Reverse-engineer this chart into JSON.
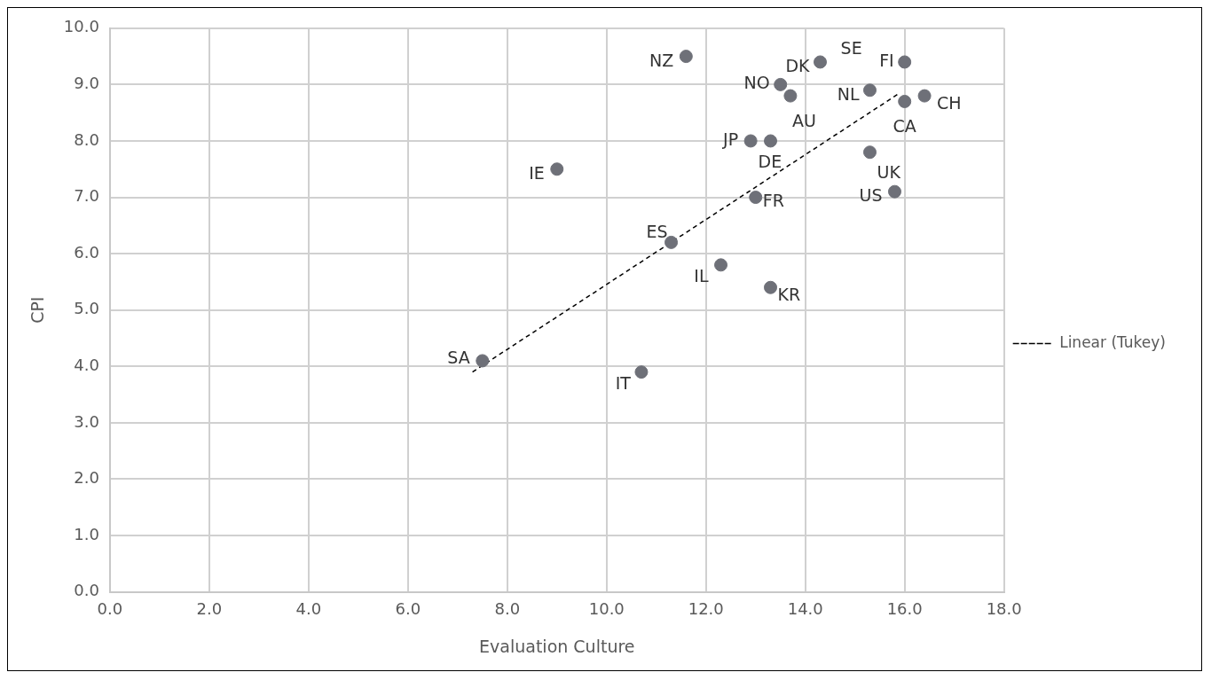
{
  "chart_data": {
    "type": "scatter",
    "xlabel": "Evaluation Culture",
    "ylabel": "CPI",
    "xlim": [
      0,
      18
    ],
    "ylim": [
      0,
      10
    ],
    "xticks": [
      {
        "value": 0,
        "label": "0.0"
      },
      {
        "value": 2,
        "label": "2.0"
      },
      {
        "value": 4,
        "label": "4.0"
      },
      {
        "value": 6,
        "label": "6.0"
      },
      {
        "value": 8,
        "label": "8.0"
      },
      {
        "value": 10,
        "label": "10.0"
      },
      {
        "value": 12,
        "label": "12.0"
      },
      {
        "value": 14,
        "label": "14.0"
      },
      {
        "value": 16,
        "label": "16.0"
      },
      {
        "value": 18,
        "label": "18.0"
      }
    ],
    "yticks": [
      {
        "value": 0,
        "label": "0.0"
      },
      {
        "value": 1,
        "label": "1.0"
      },
      {
        "value": 2,
        "label": "2.0"
      },
      {
        "value": 3,
        "label": "3.0"
      },
      {
        "value": 4,
        "label": "4.0"
      },
      {
        "value": 5,
        "label": "5.0"
      },
      {
        "value": 6,
        "label": "6.0"
      },
      {
        "value": 7,
        "label": "7.0"
      },
      {
        "value": 8,
        "label": "8.0"
      },
      {
        "value": 9,
        "label": "9.0"
      },
      {
        "value": 10,
        "label": "10.0"
      }
    ],
    "grid": true,
    "legend": "right",
    "series": [
      {
        "marker": "circle",
        "color": "#6e7078",
        "x": [
          11.6,
          14.3,
          16.0,
          13.5,
          13.7,
          15.3,
          16.0,
          16.4,
          12.9,
          13.3,
          15.3,
          9.0,
          15.8,
          13.0,
          11.3,
          12.3,
          13.3,
          7.5,
          10.7
        ],
        "values": [
          9.5,
          9.4,
          9.4,
          9.0,
          8.8,
          8.9,
          8.7,
          8.8,
          8.0,
          8.0,
          7.8,
          7.5,
          7.1,
          7.0,
          6.2,
          5.8,
          5.4,
          4.1,
          3.9
        ]
      },
      {
        "type": "line",
        "name": "Linear (Tukey)",
        "color": "#000000",
        "line_style": "dashed",
        "marker": "none",
        "x": [
          7.3,
          15.9
        ],
        "values": [
          3.9,
          8.85
        ]
      }
    ],
    "annotations": [
      {
        "text": "NZ",
        "x": 11.6,
        "y": 9.5
      },
      {
        "text": "DK",
        "x": 14.3,
        "y": 9.4
      },
      {
        "text": "FI",
        "x": 16.0,
        "y": 9.4
      },
      {
        "text": "NO",
        "x": 13.5,
        "y": 9.0
      },
      {
        "text": "AU",
        "x": 13.7,
        "y": 8.8
      },
      {
        "text": "NL",
        "x": 15.3,
        "y": 8.9
      },
      {
        "text": "CA",
        "x": 16.0,
        "y": 8.7
      },
      {
        "text": "CH",
        "x": 16.4,
        "y": 8.8
      },
      {
        "text": "JP",
        "x": 12.9,
        "y": 8.0
      },
      {
        "text": "DE",
        "x": 13.3,
        "y": 8.0
      },
      {
        "text": "UK",
        "x": 15.3,
        "y": 7.8
      },
      {
        "text": "IE",
        "x": 9.0,
        "y": 7.5
      },
      {
        "text": "US",
        "x": 15.8,
        "y": 7.1
      },
      {
        "text": "FR",
        "x": 13.0,
        "y": 7.0
      },
      {
        "text": "ES",
        "x": 11.3,
        "y": 6.2
      },
      {
        "text": "IL",
        "x": 12.3,
        "y": 5.8
      },
      {
        "text": "KR",
        "x": 13.3,
        "y": 5.4
      },
      {
        "text": "SA",
        "x": 7.5,
        "y": 4.1
      },
      {
        "text": "IT",
        "x": 10.7,
        "y": 3.9
      },
      {
        "text": "SE",
        "x": 16.0,
        "y": 9.4
      }
    ]
  }
}
